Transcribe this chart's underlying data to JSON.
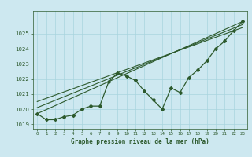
{
  "xlabel": "Graphe pression niveau de la mer (hPa)",
  "bg_color": "#cde8f0",
  "grid_color": "#a8d4de",
  "line_color": "#2d5a2d",
  "ylim": [
    1018.7,
    1026.5
  ],
  "xlim": [
    -0.5,
    23.5
  ],
  "yticks": [
    1019,
    1020,
    1021,
    1022,
    1023,
    1024,
    1025
  ],
  "xtick_labels": [
    "0",
    "1",
    "2",
    "3",
    "4",
    "5",
    "6",
    "7",
    "8",
    "9",
    "10",
    "11",
    "12",
    "13",
    "14",
    "15",
    "16",
    "17",
    "18",
    "19",
    "20",
    "21",
    "22",
    "23"
  ],
  "series1_x": [
    0,
    1,
    2,
    3,
    4,
    5,
    6,
    7,
    8,
    9,
    10,
    11,
    12,
    13,
    14,
    15,
    16,
    17,
    18,
    19,
    20,
    21,
    22,
    23
  ],
  "series1_y": [
    1019.7,
    1019.3,
    1019.3,
    1019.5,
    1019.6,
    1020.0,
    1020.2,
    1020.2,
    1021.8,
    1022.4,
    1022.2,
    1021.9,
    1021.2,
    1020.6,
    1020.0,
    1021.4,
    1021.1,
    1022.1,
    1022.6,
    1023.2,
    1024.0,
    1024.5,
    1025.2,
    1025.8
  ],
  "trend1_x": [
    0,
    23
  ],
  "trend1_y": [
    1019.7,
    1025.8
  ],
  "trend2_x": [
    0,
    23
  ],
  "trend2_y": [
    1020.5,
    1025.4
  ],
  "trend3_x": [
    0,
    23
  ],
  "trend3_y": [
    1020.1,
    1025.6
  ]
}
